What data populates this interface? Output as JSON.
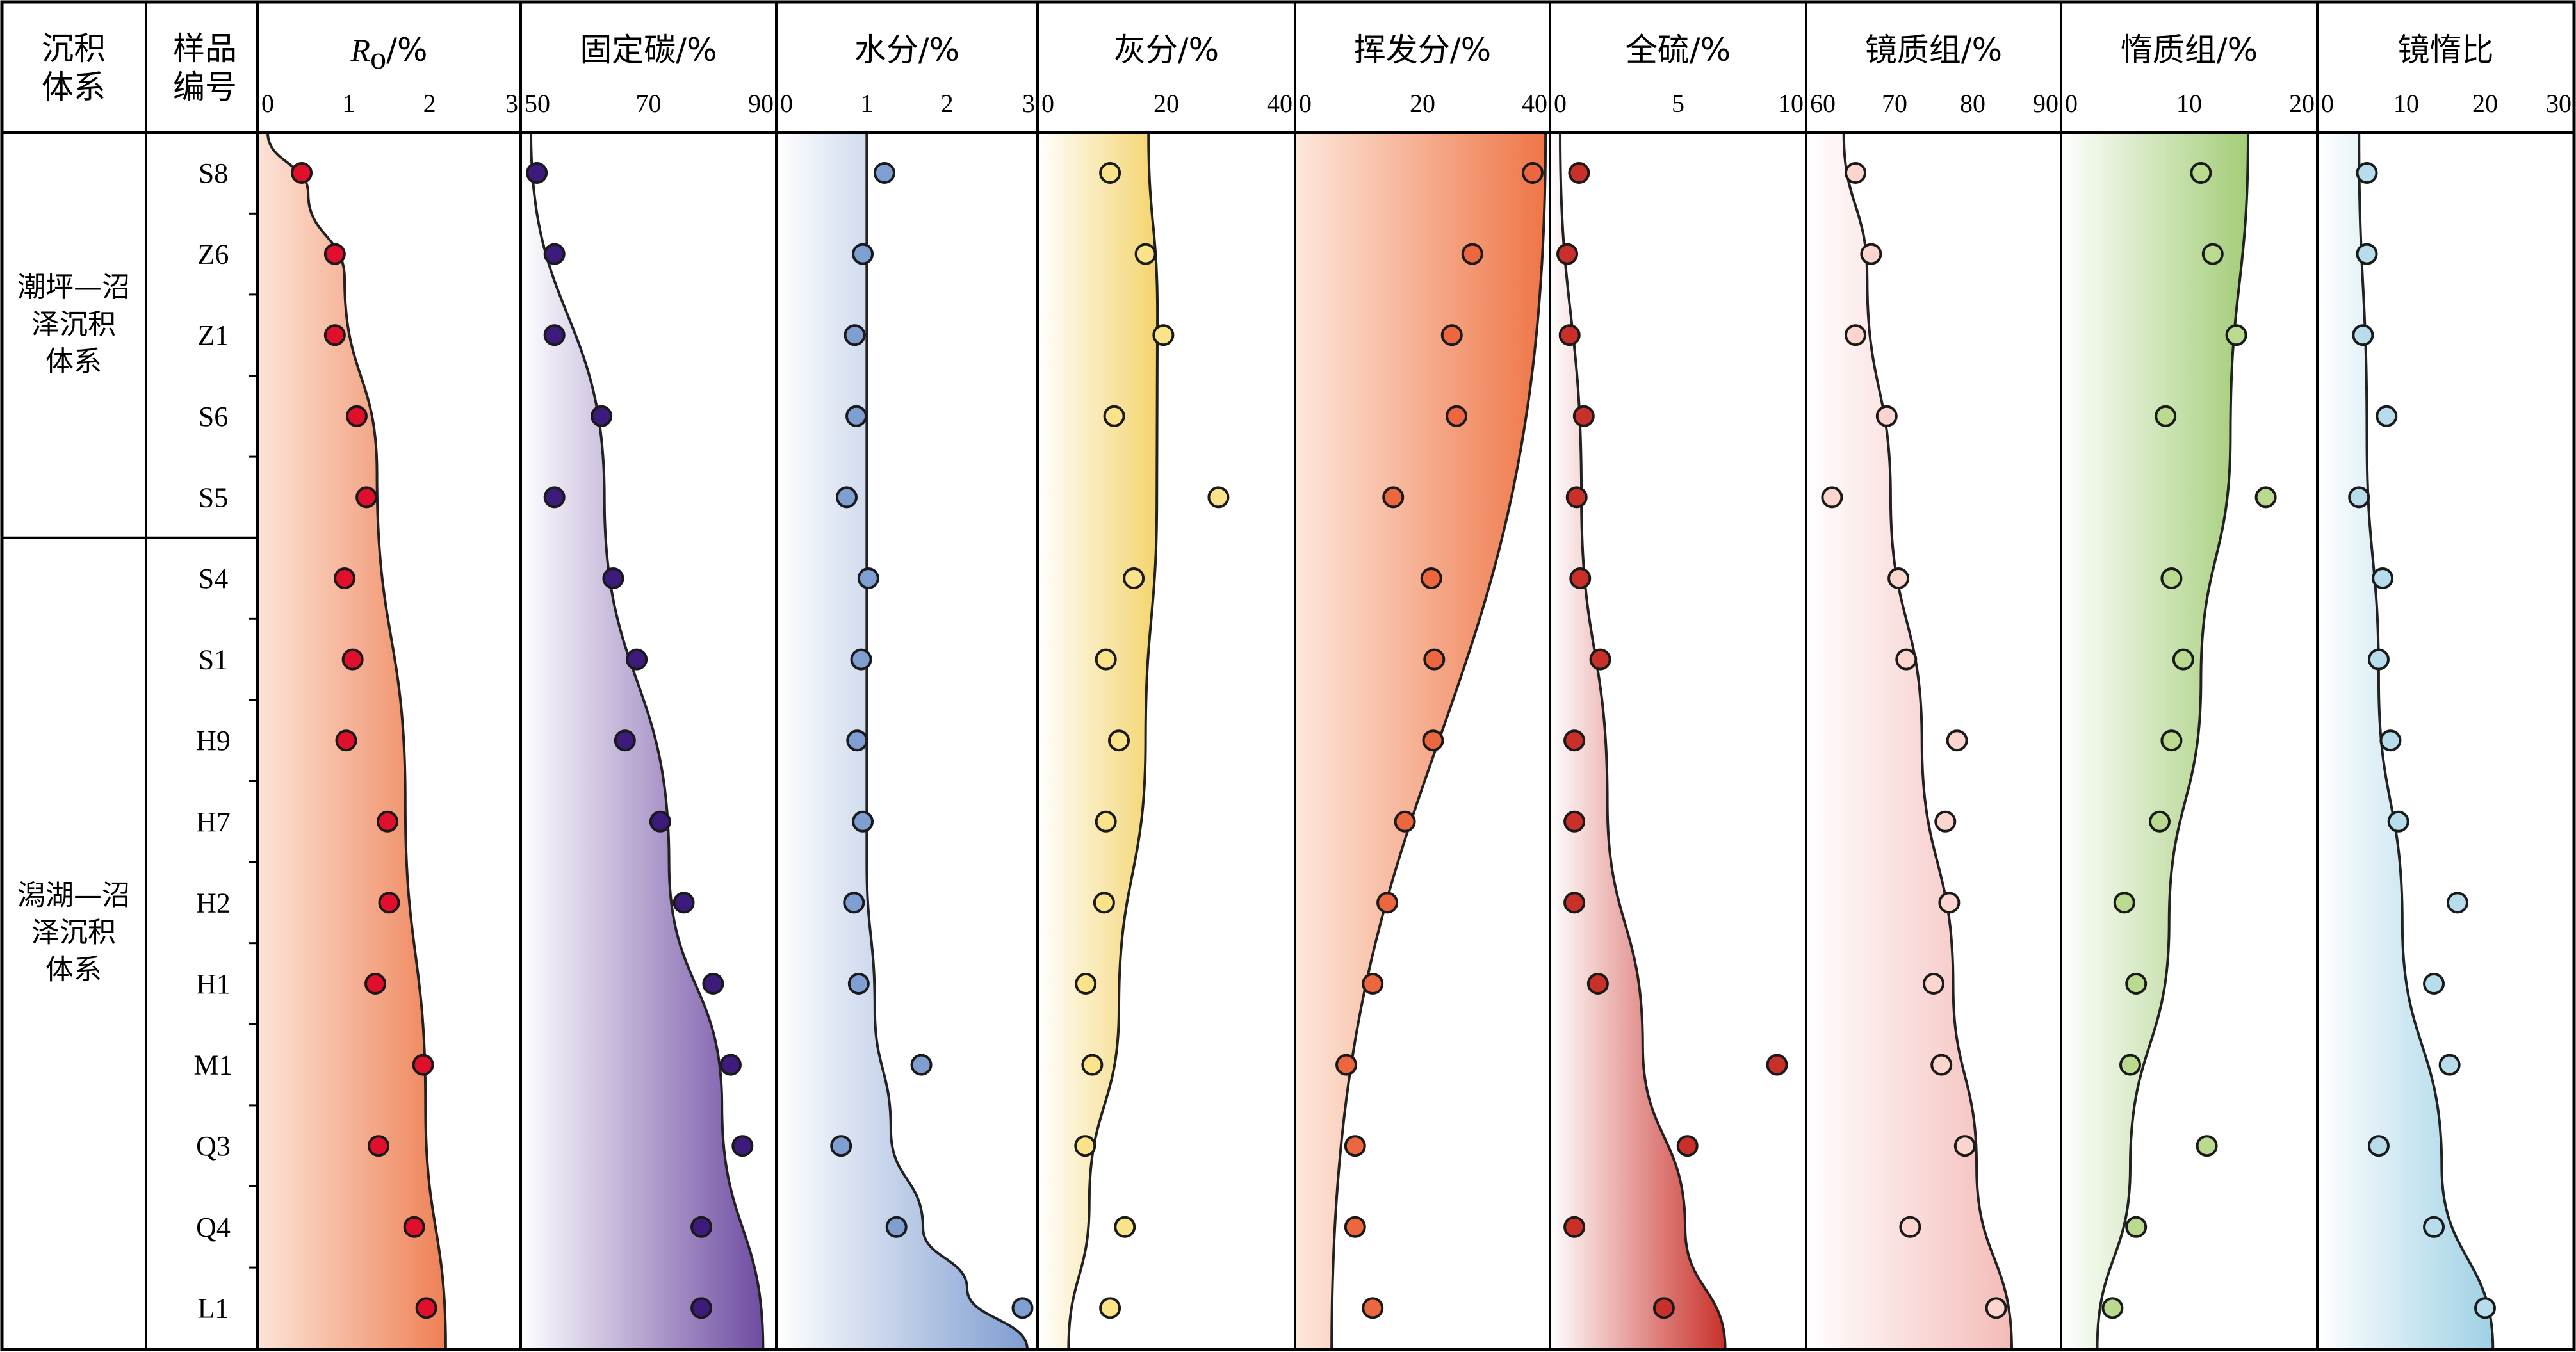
{
  "table_header": {
    "system_line1": "沉积",
    "system_line2": "体系",
    "sample_line1": "样品",
    "sample_line2": "编号"
  },
  "systems": [
    {
      "lines": [
        "潮坪—沼",
        "泽沉积",
        "体系"
      ],
      "count": 5
    },
    {
      "lines": [
        "潟湖—沼",
        "泽沉积",
        "体系"
      ],
      "count": 10
    }
  ],
  "chart_data": {
    "type": "scatter",
    "samples": [
      "S8",
      "Z6",
      "Z1",
      "S6",
      "S5",
      "S4",
      "S1",
      "H9",
      "H7",
      "H2",
      "H1",
      "M1",
      "Q3",
      "Q4",
      "L1"
    ],
    "panels": [
      {
        "id": "ro",
        "title": "Ro/%",
        "title_main": "R",
        "title_sub": "o",
        "title_suffix": "/%",
        "xlim": [
          0,
          3
        ],
        "ticks": [
          0,
          1,
          2,
          3
        ],
        "color": "#e0102d",
        "gradient": [
          "#fde4d8",
          "#ee8155"
        ],
        "fill_side": "left",
        "values": [
          0.42,
          0.83,
          0.83,
          1.1,
          1.22,
          0.95,
          1.05,
          0.97,
          1.48,
          1.5,
          1.33,
          1.92,
          1.37,
          1.81,
          1.96
        ],
        "curve": [
          [
            0.0,
            0.0
          ],
          [
            0.5,
            0.05
          ],
          [
            0.95,
            0.12
          ],
          [
            1.35,
            0.28
          ],
          [
            1.7,
            0.55
          ],
          [
            1.95,
            0.8
          ],
          [
            2.2,
            1.0
          ]
        ]
      },
      {
        "id": "fc",
        "title": "固定碳/%",
        "xlim": [
          50,
          90
        ],
        "ticks": [
          50,
          70,
          90
        ],
        "color": "#3d1b7c",
        "gradient": [
          "#ffffff",
          "#6e4ca2"
        ],
        "fill_side": "left",
        "values": [
          51,
          54,
          54,
          62,
          54,
          64,
          68,
          66,
          72,
          76,
          81,
          84,
          86,
          79,
          79
        ],
        "curve": [
          [
            50,
            0.0
          ],
          [
            62.5,
            0.3
          ],
          [
            73.5,
            0.6
          ],
          [
            82.5,
            0.8
          ],
          [
            89.5,
            1.0
          ]
        ]
      },
      {
        "id": "water",
        "title": "水分/%",
        "xlim": [
          0,
          3
        ],
        "ticks": [
          0,
          1,
          2,
          3
        ],
        "color": "#7f9fd3",
        "gradient": [
          "#ffffff",
          "#7f9dd1"
        ],
        "fill_side": "left",
        "values": [
          1.22,
          0.95,
          0.85,
          0.87,
          0.75,
          1.02,
          0.93,
          0.88,
          0.95,
          0.84,
          0.9,
          1.68,
          0.68,
          1.37,
          2.94
        ],
        "curve": [
          [
            1.0,
            0.0
          ],
          [
            1.0,
            0.6
          ],
          [
            1.1,
            0.72
          ],
          [
            1.3,
            0.82
          ],
          [
            1.7,
            0.9
          ],
          [
            2.25,
            0.95
          ],
          [
            3.0,
            1.0
          ]
        ]
      },
      {
        "id": "ash",
        "title": "灰分/%",
        "xlim": [
          0,
          40
        ],
        "ticks": [
          0,
          20,
          40
        ],
        "color": "#fbe38a",
        "gradient": [
          "#ffffff",
          "#f4d46c"
        ],
        "fill_side": "left",
        "values": [
          10.5,
          16.5,
          19.5,
          11.2,
          28.8,
          14.5,
          9.8,
          12.0,
          9.8,
          9.5,
          6.4,
          7.5,
          6.3,
          13.0,
          10.5
        ],
        "curve": [
          [
            17.0,
            0.0
          ],
          [
            18.5,
            0.15
          ],
          [
            18.4,
            0.3
          ],
          [
            16.5,
            0.5
          ],
          [
            12.0,
            0.72
          ],
          [
            7.0,
            0.88
          ],
          [
            3.5,
            1.0
          ]
        ]
      },
      {
        "id": "volatile",
        "title": "挥发分/%",
        "xlim": [
          0,
          40
        ],
        "ticks": [
          0,
          20,
          40
        ],
        "color": "#ec6640",
        "gradient": [
          "#fde8dc",
          "#ef7546"
        ],
        "fill_side": "left",
        "values": [
          38.8,
          28.5,
          25.0,
          25.8,
          15.0,
          21.5,
          22.0,
          21.8,
          17.0,
          14.0,
          11.5,
          7.0,
          8.5,
          8.5,
          11.5
        ],
        "curve": [
          [
            41.0,
            0.0
          ],
          [
            4.5,
            1.0
          ]
        ]
      },
      {
        "id": "sulfur",
        "title": "全硫/%",
        "xlim": [
          0,
          10
        ],
        "ticks": [
          0,
          5,
          10
        ],
        "color": "#c9302a",
        "gradient": [
          "#ffffff",
          "#c9302a"
        ],
        "fill_side": "left",
        "values": [
          0.8,
          0.3,
          0.4,
          1.0,
          0.7,
          0.85,
          1.7,
          0.6,
          0.6,
          0.6,
          1.6,
          9.2,
          5.4,
          0.6,
          4.4
        ],
        "curve": [
          [
            0.0,
            0.0
          ],
          [
            0.9,
            0.3
          ],
          [
            2.0,
            0.55
          ],
          [
            3.5,
            0.75
          ],
          [
            5.3,
            0.9
          ],
          [
            7.0,
            1.0
          ]
        ]
      },
      {
        "id": "vitrinite",
        "title": "镜质组/%",
        "xlim": [
          60,
          90
        ],
        "ticks": [
          60,
          70,
          80,
          90
        ],
        "color": "#fcd5cf",
        "gradient": [
          "#ffffff",
          "#f4bbb8"
        ],
        "fill_side": "left",
        "values": [
          65,
          67,
          65,
          69,
          62,
          70.5,
          71.5,
          78,
          76.5,
          77,
          75,
          76,
          79,
          72,
          83
        ],
        "curve": [
          [
            63.5,
            0.0
          ],
          [
            66.5,
            0.12
          ],
          [
            69.5,
            0.3
          ],
          [
            73.5,
            0.5
          ],
          [
            77.5,
            0.7
          ],
          [
            80.5,
            0.85
          ],
          [
            85.0,
            1.0
          ]
        ]
      },
      {
        "id": "inertinite",
        "title": "惰质组/%",
        "xlim": [
          0,
          20
        ],
        "ticks": [
          0,
          10,
          20
        ],
        "color": "#b9da8f",
        "gradient": [
          "#ffffff",
          "#a3cd78"
        ],
        "fill_side": "left",
        "values": [
          11.0,
          12.0,
          14.0,
          8.0,
          16.5,
          8.5,
          9.5,
          8.5,
          7.5,
          4.5,
          5.5,
          5.0,
          11.5,
          5.5,
          3.5
        ],
        "curve": [
          [
            15.0,
            0.0
          ],
          [
            13.5,
            0.25
          ],
          [
            11.0,
            0.45
          ],
          [
            8.3,
            0.65
          ],
          [
            5.0,
            0.85
          ],
          [
            2.2,
            1.0
          ]
        ]
      },
      {
        "id": "vi_ratio",
        "title": "镜惰比",
        "xlim": [
          0,
          30
        ],
        "ticks": [
          0,
          10,
          20,
          30
        ],
        "color": "#b7dceb",
        "gradient": [
          "#ffffff",
          "#9fd1e5"
        ],
        "fill_side": "left",
        "values": [
          5,
          5,
          4.5,
          7.5,
          4,
          7,
          6.5,
          8,
          9,
          16.5,
          13.5,
          15.5,
          6.5,
          13.5,
          20
        ],
        "curve": [
          [
            4.0,
            0.0
          ],
          [
            5.0,
            0.25
          ],
          [
            6.5,
            0.45
          ],
          [
            9.5,
            0.65
          ],
          [
            14.5,
            0.85
          ],
          [
            21.0,
            1.0
          ]
        ]
      }
    ]
  }
}
